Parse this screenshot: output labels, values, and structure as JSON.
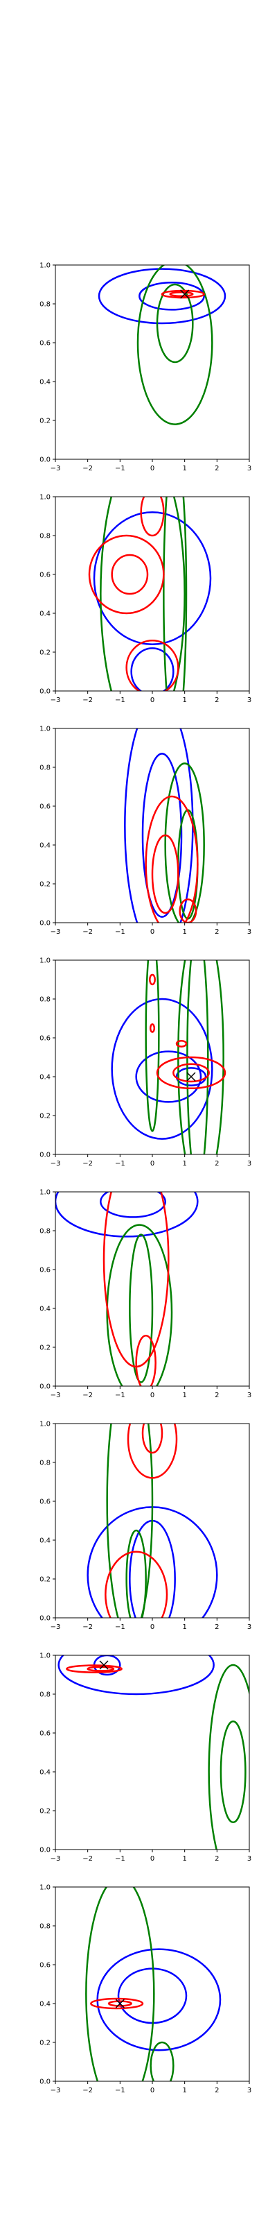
{
  "chart_data": [
    {
      "type": "contour",
      "xlim": [
        -3,
        3
      ],
      "ylim": [
        0,
        1
      ],
      "xticks": [
        "−3",
        "−2",
        "−1",
        "0",
        "1",
        "2",
        "3"
      ],
      "yticks": [
        "0.0",
        "0.2",
        "0.4",
        "0.6",
        "0.8",
        "1.0"
      ],
      "marker": [
        1.0,
        0.85
      ],
      "series": [
        {
          "color": "#0000ff",
          "contours": [
            {
              "cx": 0.3,
              "cy": 0.84,
              "rx": 1.95,
              "ry": 0.14
            },
            {
              "cx": 0.6,
              "cy": 0.84,
              "rx": 1.0,
              "ry": 0.07
            }
          ]
        },
        {
          "color": "#008000",
          "contours": [
            {
              "cx": 0.7,
              "cy": 0.6,
              "rx": 1.15,
              "ry": 0.42
            },
            {
              "cx": 0.7,
              "cy": 0.7,
              "rx": 0.55,
              "ry": 0.2
            }
          ]
        },
        {
          "color": "#ff0000",
          "contours": [
            {
              "cx": 0.95,
              "cy": 0.85,
              "rx": 0.65,
              "ry": 0.018
            },
            {
              "cx": 0.9,
              "cy": 0.85,
              "rx": 0.35,
              "ry": 0.01
            }
          ]
        }
      ]
    },
    {
      "type": "contour",
      "xlim": [
        -3,
        3
      ],
      "ylim": [
        0,
        1
      ],
      "xticks": [
        "−3",
        "−2",
        "−1",
        "0",
        "1",
        "2",
        "3"
      ],
      "yticks": [
        "0.0",
        "0.2",
        "0.4",
        "0.6",
        "0.8",
        "1.0"
      ],
      "marker": null,
      "series": [
        {
          "color": "#0000ff",
          "contours": [
            {
              "cx": 0.0,
              "cy": 0.58,
              "rx": 1.8,
              "ry": 0.34
            },
            {
              "cx": 0.0,
              "cy": 0.1,
              "rx": 0.65,
              "ry": 0.12
            }
          ]
        },
        {
          "color": "#008000",
          "contours": [
            {
              "cx": -0.3,
              "cy": 0.5,
              "rx": 1.3,
              "ry": 0.75
            },
            {
              "cx": 0.7,
              "cy": 0.5,
              "rx": 0.35,
              "ry": 0.75
            }
          ]
        },
        {
          "color": "#ff0000",
          "contours": [
            {
              "cx": -0.8,
              "cy": 0.6,
              "rx": 1.15,
              "ry": 0.2
            },
            {
              "cx": -0.7,
              "cy": 0.6,
              "rx": 0.55,
              "ry": 0.1
            },
            {
              "cx": 0.0,
              "cy": 0.12,
              "rx": 0.8,
              "ry": 0.14
            },
            {
              "cx": 0.0,
              "cy": 0.92,
              "rx": 0.35,
              "ry": 0.12
            }
          ]
        }
      ]
    },
    {
      "type": "contour",
      "xlim": [
        -3,
        3
      ],
      "ylim": [
        0,
        1
      ],
      "xticks": [
        "−3",
        "−2",
        "−1",
        "0",
        "1",
        "2",
        "3"
      ],
      "yticks": [
        "0.0",
        "0.2",
        "0.4",
        "0.6",
        "0.8",
        "1.0"
      ],
      "marker": null,
      "series": [
        {
          "color": "#0000ff",
          "contours": [
            {
              "cx": 0.2,
              "cy": 0.5,
              "rx": 1.05,
              "ry": 0.65
            },
            {
              "cx": 0.3,
              "cy": 0.45,
              "rx": 0.6,
              "ry": 0.42
            }
          ]
        },
        {
          "color": "#008000",
          "contours": [
            {
              "cx": 1.0,
              "cy": 0.4,
              "rx": 0.6,
              "ry": 0.42
            },
            {
              "cx": 1.1,
              "cy": 0.3,
              "rx": 0.3,
              "ry": 0.28
            }
          ]
        },
        {
          "color": "#ff0000",
          "contours": [
            {
              "cx": 0.6,
              "cy": 0.3,
              "rx": 0.8,
              "ry": 0.35
            },
            {
              "cx": 0.4,
              "cy": 0.25,
              "rx": 0.4,
              "ry": 0.2
            },
            {
              "cx": 1.1,
              "cy": 0.06,
              "rx": 0.25,
              "ry": 0.06
            }
          ]
        }
      ]
    },
    {
      "type": "contour",
      "xlim": [
        -3,
        3
      ],
      "ylim": [
        0,
        1
      ],
      "xticks": [
        "−3",
        "−2",
        "−1",
        "0",
        "1",
        "2",
        "3"
      ],
      "yticks": [
        "0.0",
        "0.2",
        "0.4",
        "0.6",
        "0.8",
        "1.0"
      ],
      "marker": [
        1.2,
        0.4
      ],
      "series": [
        {
          "color": "#0000ff",
          "contours": [
            {
              "cx": 0.3,
              "cy": 0.44,
              "rx": 1.55,
              "ry": 0.36
            },
            {
              "cx": 0.5,
              "cy": 0.4,
              "rx": 1.0,
              "ry": 0.13
            },
            {
              "cx": 1.2,
              "cy": 0.4,
              "rx": 0.45,
              "ry": 0.045
            }
          ]
        },
        {
          "color": "#008000",
          "contours": [
            {
              "cx": 1.5,
              "cy": 0.5,
              "rx": 0.7,
              "ry": 0.7
            },
            {
              "cx": 1.4,
              "cy": 0.5,
              "rx": 0.32,
              "ry": 0.65
            },
            {
              "cx": 0.0,
              "cy": 0.62,
              "rx": 0.2,
              "ry": 0.5
            }
          ]
        },
        {
          "color": "#ff0000",
          "contours": [
            {
              "cx": 1.2,
              "cy": 0.42,
              "rx": 1.05,
              "ry": 0.08
            },
            {
              "cx": 1.2,
              "cy": 0.42,
              "rx": 0.55,
              "ry": 0.045
            },
            {
              "cx": 0.9,
              "cy": 0.57,
              "rx": 0.15,
              "ry": 0.015
            },
            {
              "cx": 0.0,
              "cy": 0.9,
              "rx": 0.08,
              "ry": 0.025
            },
            {
              "cx": 0.0,
              "cy": 0.65,
              "rx": 0.06,
              "ry": 0.02
            }
          ]
        }
      ]
    },
    {
      "type": "contour",
      "xlim": [
        -3,
        3
      ],
      "ylim": [
        0,
        1
      ],
      "xticks": [
        "−3",
        "−2",
        "−1",
        "0",
        "1",
        "2",
        "3"
      ],
      "yticks": [
        "0.0",
        "0.2",
        "0.4",
        "0.6",
        "0.8",
        "1.0"
      ],
      "marker": null,
      "series": [
        {
          "color": "#0000ff",
          "contours": [
            {
              "cx": -0.8,
              "cy": 0.95,
              "rx": 2.2,
              "ry": 0.18
            },
            {
              "cx": -0.6,
              "cy": 0.95,
              "rx": 1.0,
              "ry": 0.08
            }
          ]
        },
        {
          "color": "#008000",
          "contours": [
            {
              "cx": -0.4,
              "cy": 0.38,
              "rx": 1.0,
              "ry": 0.45
            },
            {
              "cx": -0.35,
              "cy": 0.4,
              "rx": 0.35,
              "ry": 0.38
            }
          ]
        },
        {
          "color": "#ff0000",
          "contours": [
            {
              "cx": -0.5,
              "cy": 0.65,
              "rx": 1.0,
              "ry": 0.55
            },
            {
              "cx": -0.2,
              "cy": 0.12,
              "rx": 0.3,
              "ry": 0.14
            }
          ]
        }
      ]
    },
    {
      "type": "contour",
      "xlim": [
        -3,
        3
      ],
      "ylim": [
        0,
        1
      ],
      "xticks": [
        "−3",
        "−2",
        "−1",
        "0",
        "1",
        "2",
        "3"
      ],
      "yticks": [
        "0.0",
        "0.2",
        "0.4",
        "0.6",
        "0.8",
        "1.0"
      ],
      "marker": null,
      "series": [
        {
          "color": "#0000ff",
          "contours": [
            {
              "cx": 0.0,
              "cy": 0.22,
              "rx": 2.0,
              "ry": 0.35
            },
            {
              "cx": 0.0,
              "cy": 0.2,
              "rx": 0.7,
              "ry": 0.3
            }
          ]
        },
        {
          "color": "#008000",
          "contours": [
            {
              "cx": -0.7,
              "cy": 0.6,
              "rx": 0.7,
              "ry": 0.7
            },
            {
              "cx": -0.5,
              "cy": 0.2,
              "rx": 0.3,
              "ry": 0.25
            }
          ]
        },
        {
          "color": "#ff0000",
          "contours": [
            {
              "cx": 0.0,
              "cy": 0.92,
              "rx": 0.75,
              "ry": 0.2
            },
            {
              "cx": 0.0,
              "cy": 0.95,
              "rx": 0.3,
              "ry": 0.1
            },
            {
              "cx": -0.5,
              "cy": 0.12,
              "rx": 0.95,
              "ry": 0.22
            }
          ]
        }
      ]
    },
    {
      "type": "contour",
      "xlim": [
        -3,
        3
      ],
      "ylim": [
        0,
        1
      ],
      "xticks": [
        "−3",
        "−2",
        "−1",
        "0",
        "1",
        "2",
        "3"
      ],
      "yticks": [
        "0.0",
        "0.2",
        "0.4",
        "0.6",
        "0.8",
        "1.0"
      ],
      "marker": [
        -1.5,
        0.95
      ],
      "series": [
        {
          "color": "#0000ff",
          "contours": [
            {
              "cx": -0.5,
              "cy": 0.95,
              "rx": 2.4,
              "ry": 0.15
            },
            {
              "cx": -1.4,
              "cy": 0.95,
              "rx": 0.4,
              "ry": 0.05
            }
          ]
        },
        {
          "color": "#008000",
          "contours": [
            {
              "cx": 2.5,
              "cy": 0.4,
              "rx": 0.75,
              "ry": 0.55
            },
            {
              "cx": 2.5,
              "cy": 0.4,
              "rx": 0.38,
              "ry": 0.26
            }
          ]
        },
        {
          "color": "#ff0000",
          "contours": [
            {
              "cx": -1.8,
              "cy": 0.93,
              "rx": 0.85,
              "ry": 0.018
            },
            {
              "cx": -1.6,
              "cy": 0.93,
              "rx": 0.4,
              "ry": 0.01
            }
          ]
        }
      ]
    },
    {
      "type": "contour",
      "xlim": [
        -3,
        3
      ],
      "ylim": [
        0,
        1
      ],
      "xticks": [
        "−3",
        "−2",
        "−1",
        "0",
        "1",
        "2",
        "3"
      ],
      "yticks": [
        "0.0",
        "0.2",
        "0.4",
        "0.6",
        "0.8",
        "1.0"
      ],
      "marker": [
        -1.0,
        0.4
      ],
      "series": [
        {
          "color": "#0000ff",
          "contours": [
            {
              "cx": 0.2,
              "cy": 0.42,
              "rx": 1.9,
              "ry": 0.26
            },
            {
              "cx": 0.0,
              "cy": 0.44,
              "rx": 1.05,
              "ry": 0.14
            }
          ]
        },
        {
          "color": "#008000",
          "contours": [
            {
              "cx": -1.0,
              "cy": 0.45,
              "rx": 1.05,
              "ry": 0.6
            },
            {
              "cx": 0.3,
              "cy": 0.08,
              "rx": 0.35,
              "ry": 0.12
            }
          ]
        },
        {
          "color": "#ff0000",
          "contours": [
            {
              "cx": -1.1,
              "cy": 0.4,
              "rx": 0.8,
              "ry": 0.025
            },
            {
              "cx": -1.0,
              "cy": 0.4,
              "rx": 0.35,
              "ry": 0.012
            }
          ]
        }
      ]
    }
  ]
}
